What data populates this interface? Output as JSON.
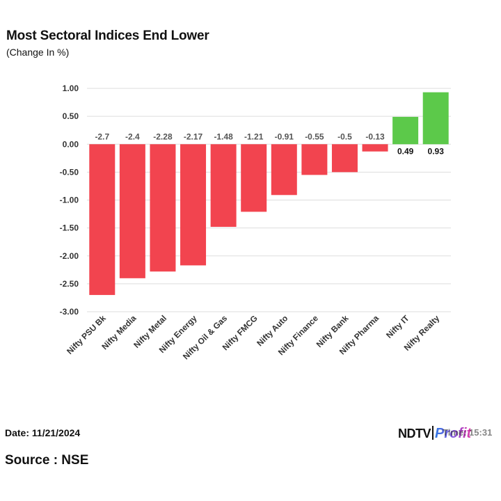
{
  "title": "Most Sectoral Indices End Lower",
  "subtitle": "(Change In %)",
  "footer": {
    "date": "Date: 11/21/2024",
    "source": "Source : NSE",
    "time_overlay": "Time: 15:31"
  },
  "logo": {
    "part1": "NDTV",
    "part2": "Profit"
  },
  "colors": {
    "negative": "#f2444f",
    "positive": "#5cc94a",
    "grid": "#dddddd"
  },
  "chart_data": {
    "type": "bar",
    "categories": [
      "Nifty PSU Bk",
      "Nifty Media",
      "Nifty Metal",
      "Nifty Energy",
      "Nifty Oil & Gas",
      "Nifty FMCG",
      "Nifty Auto",
      "Nifty Finance",
      "Nifty Bank",
      "Nifty Pharma",
      "Nifty IT",
      "Nifty Realty"
    ],
    "values": [
      -2.7,
      -2.4,
      -2.28,
      -2.17,
      -1.48,
      -1.21,
      -0.91,
      -0.55,
      -0.5,
      -0.13,
      0.49,
      0.93
    ],
    "data_labels": [
      "-2.7",
      "-2.4",
      "-2.28",
      "-2.17",
      "-1.48",
      "-1.21",
      "-0.91",
      "-0.55",
      "-0.5",
      "-0.13",
      "0.49",
      "0.93"
    ],
    "ylim": [
      -3.0,
      1.0
    ],
    "yticks": [
      "1.00",
      "0.50",
      "0.00",
      "-0.50",
      "-1.00",
      "-1.50",
      "-2.00",
      "-2.50",
      "-3.00"
    ],
    "grid": true,
    "title": "Most Sectoral Indices End Lower",
    "subtitle": "(Change In %)"
  }
}
